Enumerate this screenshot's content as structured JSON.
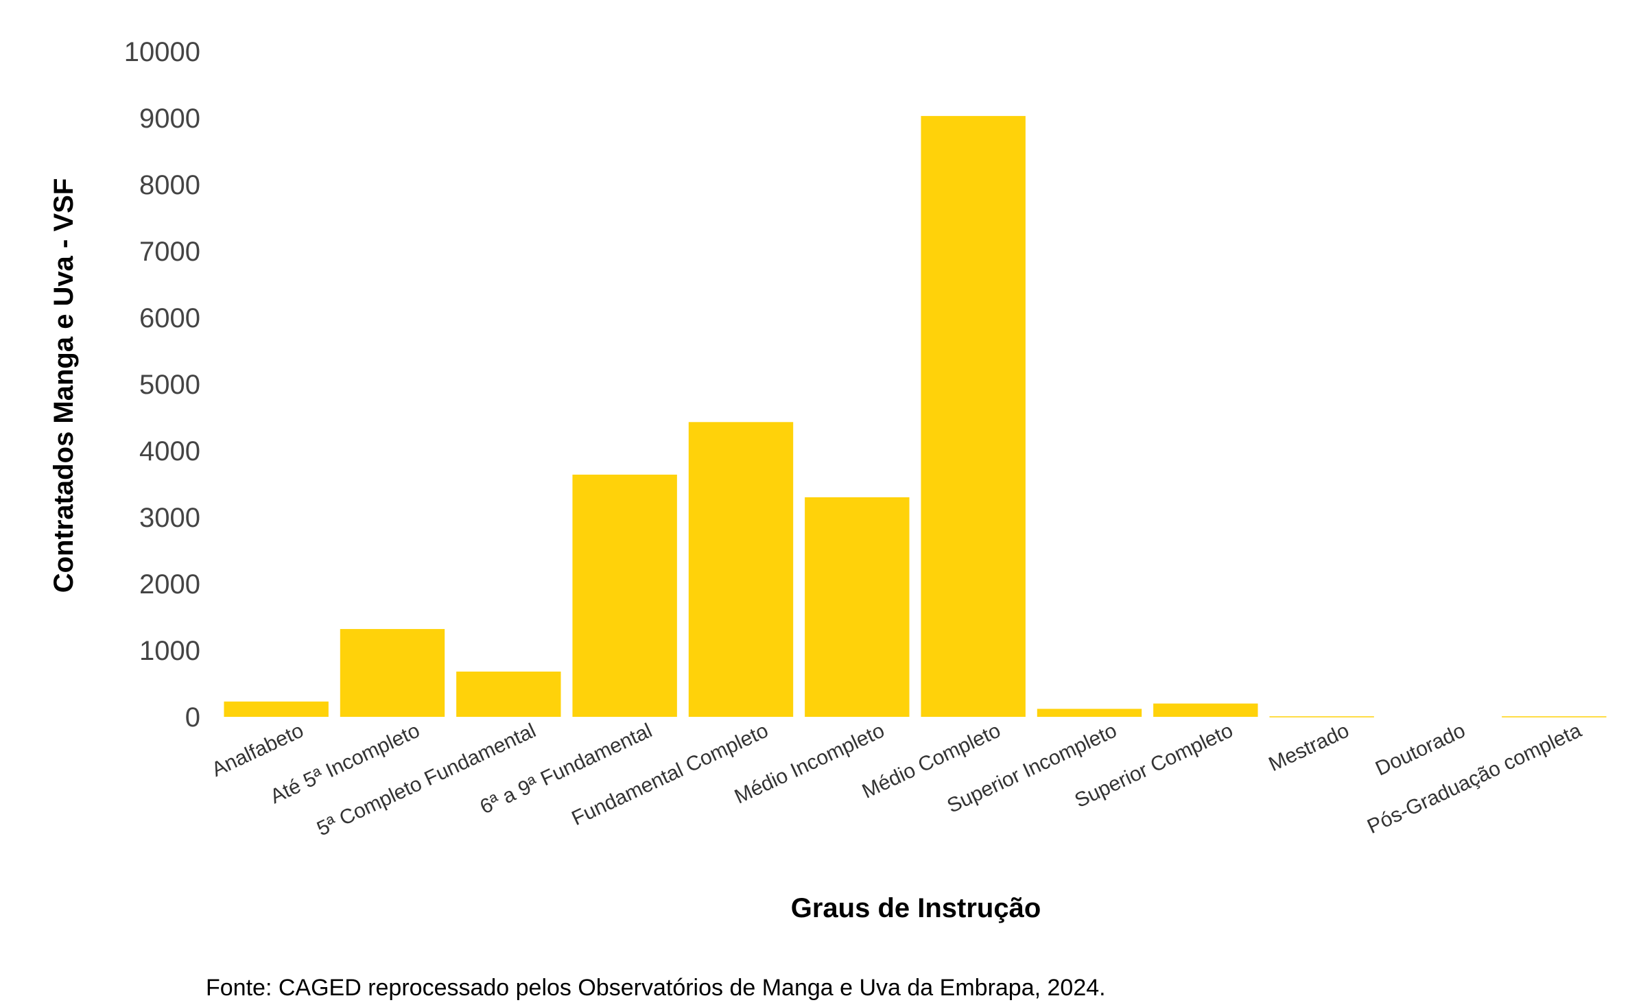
{
  "chart_data": {
    "type": "bar",
    "title": "",
    "xlabel": "Graus de Instrução",
    "ylabel": "Contratados Manga e Uva - VSF",
    "caption": "Fonte: CAGED reprocessado pelos Observatórios de Manga e Uva da Embrapa, 2024.",
    "ylim": [
      0,
      10000
    ],
    "yticks": [
      "0",
      "1000",
      "2000",
      "3000",
      "4000",
      "5000",
      "6000",
      "7000",
      "8000",
      "9000",
      "10000"
    ],
    "grid": false,
    "legend": "none",
    "bar_color": "#FFD20A",
    "categories": [
      "Analfabeto",
      "Até 5ª Incompleto",
      "5ª Completo Fundamental",
      "6ª a 9ª Fundamental",
      "Fundamental Completo",
      "Médio Incompleto",
      "Médio Completo",
      "Superior Incompleto",
      "Superior Completo",
      "Mestrado",
      "Doutorado",
      "Pós-Graduação completa"
    ],
    "values": [
      230,
      1320,
      680,
      3640,
      4430,
      3300,
      9030,
      120,
      200,
      8,
      0,
      8
    ]
  }
}
